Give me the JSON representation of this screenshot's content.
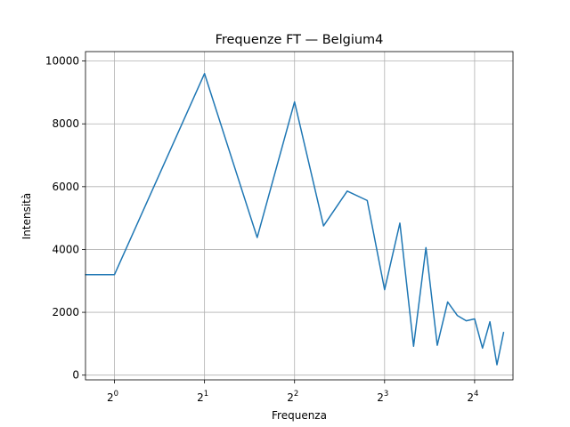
{
  "chart_data": {
    "type": "line",
    "title": "Frequenze FT — Belgium4",
    "xlabel": "Frequenza",
    "ylabel": "Intensità",
    "xscale": "log2",
    "xlim": [
      0.8,
      21.5
    ],
    "ylim": [
      -150,
      10300
    ],
    "grid": true,
    "line_color": "#1f77b4",
    "grid_color": "#b0b0b0",
    "x_ticks": [
      {
        "value": 1,
        "base": "2",
        "exp": "0"
      },
      {
        "value": 2,
        "base": "2",
        "exp": "1"
      },
      {
        "value": 4,
        "base": "2",
        "exp": "2"
      },
      {
        "value": 8,
        "base": "2",
        "exp": "3"
      },
      {
        "value": 16,
        "base": "2",
        "exp": "4"
      }
    ],
    "y_ticks": [
      0,
      2000,
      4000,
      6000,
      8000,
      10000
    ],
    "series": [
      {
        "x": [
          0.8,
          1,
          2,
          3,
          4,
          5,
          6,
          7,
          8,
          9,
          10,
          11,
          12,
          13,
          14,
          15,
          16,
          17,
          18,
          19,
          20
        ],
        "values": [
          3200,
          3200,
          9600,
          4380,
          8700,
          4750,
          5860,
          5560,
          2720,
          4840,
          920,
          4060,
          950,
          2330,
          1900,
          1730,
          1790,
          860,
          1700,
          330,
          1360
        ]
      }
    ]
  }
}
